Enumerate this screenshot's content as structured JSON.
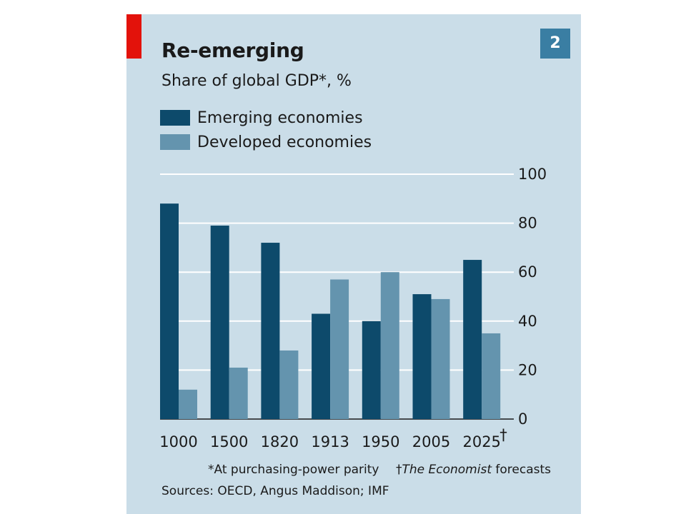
{
  "header": {
    "chart_number": "2"
  },
  "chart_data": {
    "type": "bar",
    "title": "Re-emerging",
    "subtitle": "Share of global GDP*, %",
    "categories": [
      "1000",
      "1500",
      "1820",
      "1913",
      "1950",
      "2005",
      "2025"
    ],
    "category_marks": [
      "",
      "",
      "",
      "",
      "",
      "",
      "†"
    ],
    "series": [
      {
        "name": "Emerging economies",
        "color": "#0d4a6b",
        "values": [
          88,
          79,
          72,
          43,
          40,
          51,
          65
        ]
      },
      {
        "name": "Developed economies",
        "color": "#6494ae",
        "values": [
          12,
          21,
          28,
          57,
          60,
          49,
          35
        ]
      }
    ],
    "ylim": [
      0,
      100
    ],
    "yticks": [
      0,
      20,
      40,
      60,
      80,
      100
    ],
    "y_axis_position": "right",
    "grid": true,
    "legend_position": "top-left"
  },
  "footnotes": {
    "ppp": "*At purchasing-power parity",
    "forecast_mark": "†",
    "forecast_source": "The Economist",
    "forecast_suffix": " forecasts",
    "sources": "Sources: OECD, Angus Maddison; IMF"
  },
  "colors": {
    "background": "#cadde8",
    "accent": "#e3120b",
    "badge": "#3a7ea3"
  }
}
